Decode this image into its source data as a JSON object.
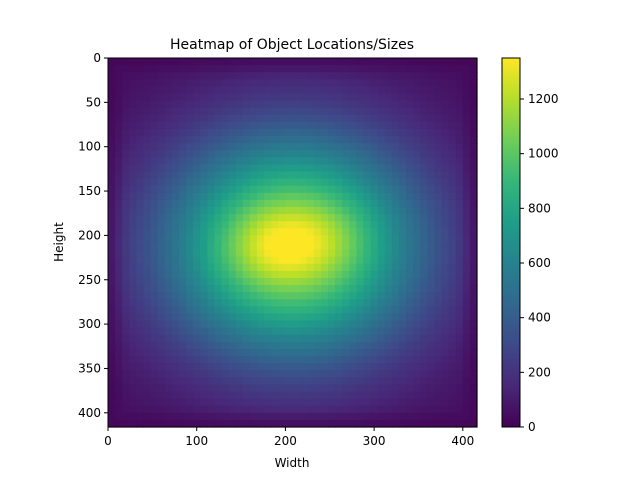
{
  "chart_data": {
    "type": "heatmap",
    "title": "Heatmap of Object Locations/Sizes",
    "xlabel": "Width",
    "ylabel": "Height",
    "xlim": [
      0,
      416
    ],
    "ylim": [
      416,
      0
    ],
    "x_ticks": [
      0,
      100,
      200,
      300,
      400
    ],
    "y_ticks": [
      0,
      50,
      100,
      150,
      200,
      250,
      300,
      350,
      400
    ],
    "colorbar": {
      "cmap": "viridis",
      "range": [
        0,
        1350
      ],
      "ticks": [
        0,
        200,
        400,
        600,
        800,
        1000,
        1200
      ]
    },
    "value_peak": 1350,
    "hotspots": [
      {
        "x": 200,
        "y": 210,
        "value": 1330
      },
      {
        "x": 250,
        "y": 205,
        "value": 1150
      },
      {
        "x": 160,
        "y": 215,
        "value": 1100
      }
    ],
    "colors": {
      "viridis": [
        "#440154",
        "#482878",
        "#3e4989",
        "#31688e",
        "#26828e",
        "#1f9e89",
        "#35b779",
        "#6ece58",
        "#b5de2b",
        "#fde725"
      ]
    }
  }
}
